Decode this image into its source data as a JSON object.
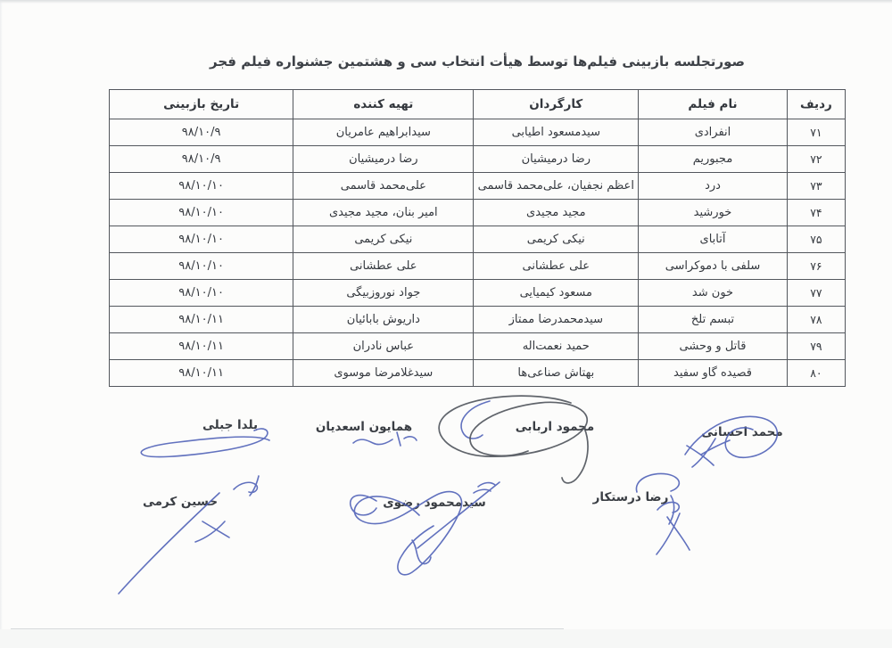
{
  "page": {
    "title": "صورتجلسه بازبینی فیلم‌ها توسط هیأت انتخاب سی و هشتمین جشنواره فیلم فجر"
  },
  "table": {
    "headers": {
      "row": "ردیف",
      "film": "نام فیلم",
      "director": "کارگردان",
      "producer": "تهیه کننده",
      "date": "تاریخ بازبینی"
    },
    "rows": [
      {
        "row": "۷۱",
        "film": "انفرادی",
        "director": "سیدمسعود اطیابی",
        "producer": "سیدابراهیم عامریان",
        "date": "۹۸/۱۰/۹"
      },
      {
        "row": "۷۲",
        "film": "مجبوریم",
        "director": "رضا درمیشیان",
        "producer": "رضا درمیشیان",
        "date": "۹۸/۱۰/۹"
      },
      {
        "row": "۷۳",
        "film": "درد",
        "director": "اعظم نجفیان، علی‌محمد قاسمی",
        "producer": "علی‌محمد قاسمی",
        "date": "۹۸/۱۰/۱۰"
      },
      {
        "row": "۷۴",
        "film": "خورشید",
        "director": "مجید مجیدی",
        "producer": "امیر بنان، مجید مجیدی",
        "date": "۹۸/۱۰/۱۰"
      },
      {
        "row": "۷۵",
        "film": "آتابای",
        "director": "نیکی کریمی",
        "producer": "نیکی کریمی",
        "date": "۹۸/۱۰/۱۰"
      },
      {
        "row": "۷۶",
        "film": "سلفی با دموکراسی",
        "director": "علی عطشانی",
        "producer": "علی عطشانی",
        "date": "۹۸/۱۰/۱۰"
      },
      {
        "row": "۷۷",
        "film": "خون شد",
        "director": "مسعود کیمیایی",
        "producer": "جواد نوروزبیگی",
        "date": "۹۸/۱۰/۱۰"
      },
      {
        "row": "۷۸",
        "film": "تبسم تلخ",
        "director": "سیدمحمدرضا ممتاز",
        "producer": "داریوش بابائیان",
        "date": "۹۸/۱۰/۱۱"
      },
      {
        "row": "۷۹",
        "film": "قاتل و وحشی",
        "director": "حمید نعمت‌اله",
        "producer": "عباس نادران",
        "date": "۹۸/۱۰/۱۱"
      },
      {
        "row": "۸۰",
        "film": "قصیده گاو سفید",
        "director": "بهتاش صناعی‌ها",
        "producer": "سیدغلامرضا موسوی",
        "date": "۹۸/۱۰/۱۱"
      }
    ]
  },
  "signatures": [
    {
      "name": "یلدا جبلی"
    },
    {
      "name": "همایون اسعدیان"
    },
    {
      "name": "محمود اربابی"
    },
    {
      "name": "محمد احسانی"
    },
    {
      "name": "حسین کرمی"
    },
    {
      "name": "سیدمحمود رضوی"
    },
    {
      "name": "رضا درستکار"
    }
  ],
  "colors": {
    "pen_blue": "#5163b8",
    "pen_dark": "#53585f",
    "border": "#53575d",
    "text": "#383c42"
  }
}
